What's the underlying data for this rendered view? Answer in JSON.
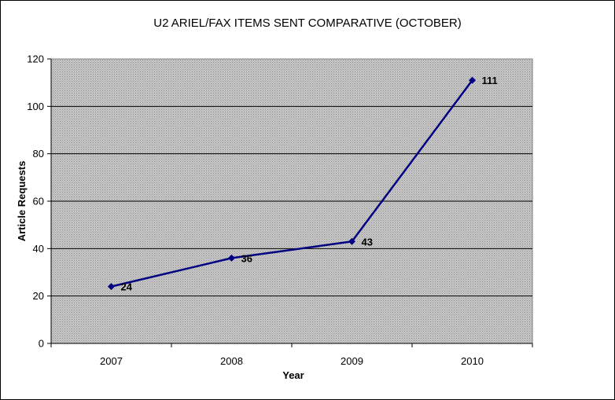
{
  "chart_data": {
    "type": "line",
    "title": "U2 ARIEL/FAX ITEMS SENT COMPARATIVE (OCTOBER)",
    "xlabel": "Year",
    "ylabel": "Article Requests",
    "categories": [
      "2007",
      "2008",
      "2009",
      "2010"
    ],
    "series": [
      {
        "values": [
          24,
          36,
          43,
          111
        ]
      }
    ],
    "ylim": [
      0,
      120
    ],
    "yticks": [
      0,
      20,
      40,
      60,
      80,
      100,
      120
    ],
    "grid": true,
    "legend": "none",
    "colors": {
      "line": "#000080",
      "plot_background": "#c0c0c0",
      "gridline": "#000000"
    }
  }
}
